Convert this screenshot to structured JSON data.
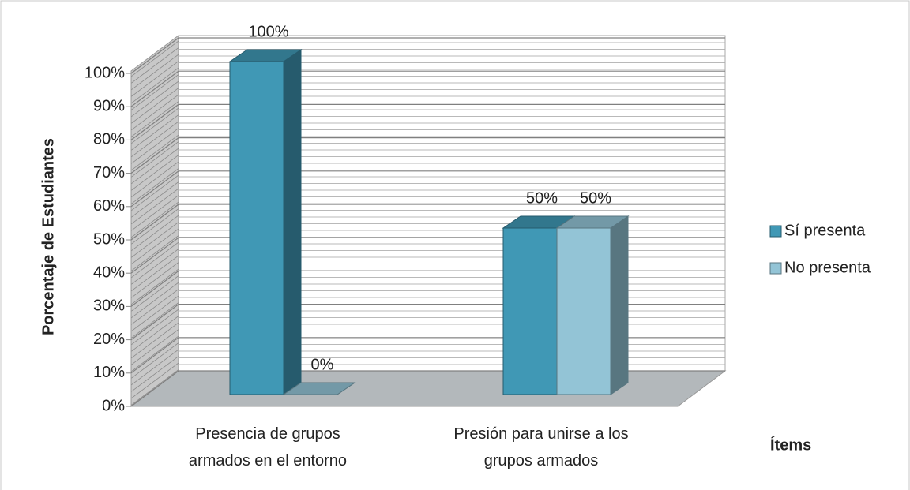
{
  "chart_data": {
    "type": "bar3d",
    "y_axis_title": "Porcentaje de Estudiantes",
    "x_axis_title": "Ítems",
    "categories": [
      "Presencia de grupos armados en el entorno",
      "Presión para unirse a los grupos armados"
    ],
    "series": [
      {
        "name": "Sí presenta",
        "color": "#4098b5",
        "values": [
          100,
          50
        ],
        "value_labels": [
          "100%",
          "50%"
        ]
      },
      {
        "name": "No presenta",
        "color": "#93c4d6",
        "values": [
          0,
          50
        ],
        "value_labels": [
          "0%",
          "50%"
        ]
      }
    ],
    "ylim": [
      0,
      100
    ],
    "yticks": [
      {
        "value": 0,
        "label": "0%"
      },
      {
        "value": 10,
        "label": "10%"
      },
      {
        "value": 20,
        "label": "20%"
      },
      {
        "value": 30,
        "label": "30%"
      },
      {
        "value": 40,
        "label": "40%"
      },
      {
        "value": 50,
        "label": "50%"
      },
      {
        "value": 60,
        "label": "60%"
      },
      {
        "value": 70,
        "label": "70%"
      },
      {
        "value": 80,
        "label": "80%"
      },
      {
        "value": 90,
        "label": "90%"
      },
      {
        "value": 100,
        "label": "100%"
      }
    ],
    "grid": true,
    "legend": "right"
  }
}
